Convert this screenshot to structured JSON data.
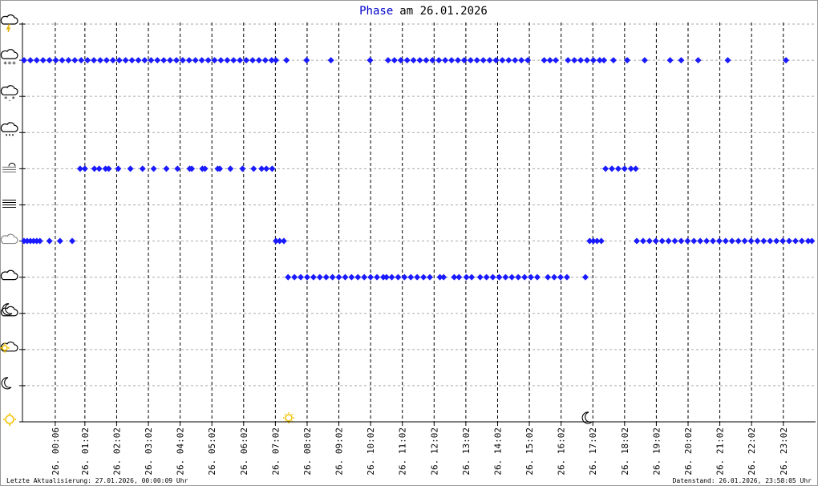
{
  "chart_data": {
    "type": "scatter",
    "title_highlight": "Phase",
    "title": "am 26.01.2026",
    "footer_left": "Letzte Aktualisierung: 27.01.2026, 00:00:09 Uhr",
    "footer_right": "Datenstand: 26.01.2026, 23:58:05 Uhr",
    "color": "#1a1aff",
    "grid": true,
    "xlim": [
      -56,
      1443
    ],
    "xticks": [
      {
        "value": 6,
        "label": "26. 00:06"
      },
      {
        "value": 62,
        "label": "26. 01:02"
      },
      {
        "value": 122,
        "label": "26. 02:02"
      },
      {
        "value": 182,
        "label": "26. 03:02"
      },
      {
        "value": 242,
        "label": "26. 04:02"
      },
      {
        "value": 302,
        "label": "26. 05:02"
      },
      {
        "value": 362,
        "label": "26. 06:02"
      },
      {
        "value": 422,
        "label": "26. 07:02"
      },
      {
        "value": 482,
        "label": "26. 08:02"
      },
      {
        "value": 542,
        "label": "26. 09:02"
      },
      {
        "value": 602,
        "label": "26. 10:02"
      },
      {
        "value": 662,
        "label": "26. 11:02"
      },
      {
        "value": 722,
        "label": "26. 12:02"
      },
      {
        "value": 782,
        "label": "26. 13:02"
      },
      {
        "value": 842,
        "label": "26. 14:02"
      },
      {
        "value": 902,
        "label": "26. 15:02"
      },
      {
        "value": 962,
        "label": "26. 16:02"
      },
      {
        "value": 1022,
        "label": "26. 17:02"
      },
      {
        "value": 1082,
        "label": "26. 18:02"
      },
      {
        "value": 1142,
        "label": "26. 19:02"
      },
      {
        "value": 1202,
        "label": "26. 20:02"
      },
      {
        "value": 1262,
        "label": "26. 21:02"
      },
      {
        "value": 1322,
        "label": "26. 22:02"
      },
      {
        "value": 1382,
        "label": "26. 23:02"
      }
    ],
    "ylim": [
      0,
      11
    ],
    "yticks": [
      0,
      1,
      2,
      3,
      4,
      5,
      6,
      7,
      8,
      9,
      10,
      11
    ],
    "x": [
      -53,
      -47,
      -41,
      -35,
      -29,
      -23,
      -5,
      15,
      38,
      423,
      430,
      438,
      1016,
      1023,
      1030,
      1038,
      1105,
      1117,
      1129,
      1141,
      1153,
      1165,
      1177,
      1189,
      1201,
      1213,
      1225,
      1237,
      1249,
      1261,
      1273,
      1285,
      1297,
      1309,
      1321,
      1333,
      1345,
      1357,
      1369,
      1381,
      1393,
      1405,
      1417,
      1429,
      1436,
      -53,
      -41,
      -29,
      -17,
      -5,
      7,
      19,
      31,
      43,
      55,
      67,
      79,
      91,
      103,
      115,
      127,
      139,
      151,
      163,
      175,
      187,
      199,
      211,
      223,
      235,
      247,
      259,
      271,
      283,
      295,
      307,
      319,
      331,
      343,
      355,
      367,
      379,
      391,
      403,
      415,
      423,
      443,
      481,
      527,
      601,
      635,
      647,
      659,
      671,
      683,
      695,
      707,
      719,
      731,
      743,
      755,
      767,
      779,
      791,
      803,
      815,
      827,
      839,
      851,
      863,
      875,
      887,
      899,
      930,
      941,
      952,
      975,
      987,
      999,
      1011,
      1023,
      1035,
      1043,
      1061,
      1087,
      1120,
      1168,
      1189,
      1221,
      1277,
      1387,
      53,
      62,
      80,
      89,
      101,
      107,
      125,
      148,
      171,
      192,
      216,
      237,
      260,
      264,
      284,
      289,
      313,
      317,
      337,
      360,
      381,
      396,
      405,
      416,
      1046,
      1058,
      1070,
      1082,
      1094,
      1103,
      446,
      458,
      470,
      482,
      494,
      506,
      518,
      530,
      542,
      554,
      566,
      578,
      590,
      602,
      614,
      626,
      632,
      642,
      654,
      666,
      678,
      690,
      702,
      714,
      733,
      740,
      760,
      769,
      783,
      793,
      809,
      821,
      833,
      845,
      857,
      869,
      881,
      893,
      905,
      917,
      937,
      949,
      961,
      973,
      1008
    ],
    "values": [
      5,
      5,
      5,
      5,
      5,
      5,
      5,
      5,
      5,
      5,
      5,
      5,
      5,
      5,
      5,
      5,
      5,
      5,
      5,
      5,
      5,
      5,
      5,
      5,
      5,
      5,
      5,
      5,
      5,
      5,
      5,
      5,
      5,
      5,
      5,
      5,
      5,
      5,
      5,
      5,
      5,
      5,
      5,
      5,
      5,
      10,
      10,
      10,
      10,
      10,
      10,
      10,
      10,
      10,
      10,
      10,
      10,
      10,
      10,
      10,
      10,
      10,
      10,
      10,
      10,
      10,
      10,
      10,
      10,
      10,
      10,
      10,
      10,
      10,
      10,
      10,
      10,
      10,
      10,
      10,
      10,
      10,
      10,
      10,
      10,
      10,
      10,
      10,
      10,
      10,
      10,
      10,
      10,
      10,
      10,
      10,
      10,
      10,
      10,
      10,
      10,
      10,
      10,
      10,
      10,
      10,
      10,
      10,
      10,
      10,
      10,
      10,
      10,
      10,
      10,
      10,
      10,
      10,
      10,
      10,
      10,
      10,
      10,
      10,
      10,
      10,
      10,
      10,
      10,
      10,
      10,
      7,
      7,
      7,
      7,
      7,
      7,
      7,
      7,
      7,
      7,
      7,
      7,
      7,
      7,
      7,
      7,
      7,
      7,
      7,
      7,
      7,
      7,
      7,
      7,
      7,
      7,
      7,
      7,
      7,
      7,
      4,
      4,
      4,
      4,
      4,
      4,
      4,
      4,
      4,
      4,
      4,
      4,
      4,
      4,
      4,
      4,
      4,
      4,
      4,
      4,
      4,
      4,
      4,
      4,
      4,
      4,
      4,
      4,
      4,
      4,
      4,
      4,
      4,
      4,
      4,
      4,
      4,
      4,
      4,
      4,
      4,
      4,
      4,
      4,
      4
    ]
  }
}
